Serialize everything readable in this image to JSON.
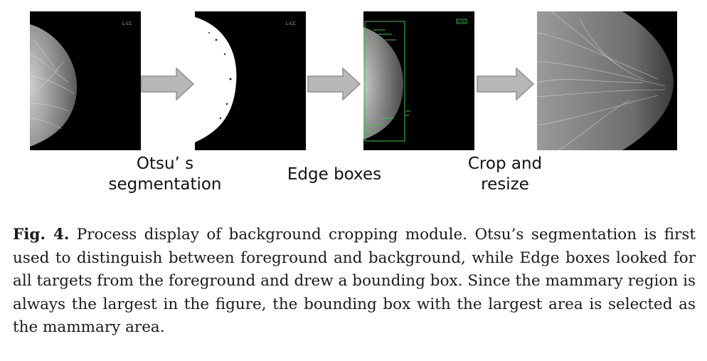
{
  "figure": {
    "panels": [
      {
        "name": "original",
        "marker": "L-CC"
      },
      {
        "name": "otsu-mask",
        "marker": "L-CC"
      },
      {
        "name": "edge-boxes",
        "marker": "L-CC"
      },
      {
        "name": "cropped-resized"
      }
    ],
    "steps": [
      {
        "line1": "Otsu’ s",
        "line2": "segmentation"
      },
      {
        "line1": "Edge boxes",
        "line2": ""
      },
      {
        "line1": "Crop and",
        "line2": "resize"
      }
    ],
    "colors": {
      "background": "#000000",
      "arrow": "#b7b7b7",
      "arrow_border": "#8f8f8f",
      "box": "#2fd14a"
    }
  },
  "caption": {
    "label": "Fig. 4.",
    "text": "Process display of background cropping module. Otsu’s segmentation is first used to distinguish between foreground and background, while Edge boxes looked for all targets from the foreground and drew a bounding box. Since the mammary region is always the largest in the figure, the bounding box with the largest area is selected as the mammary area."
  }
}
